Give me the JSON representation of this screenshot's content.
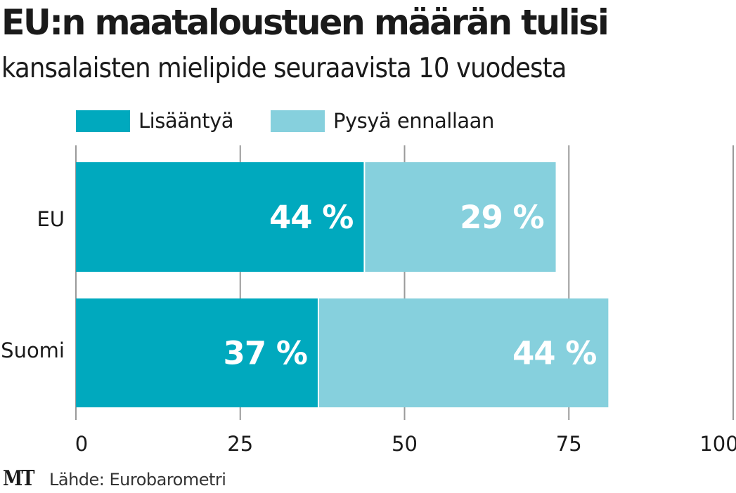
{
  "chart_data": {
    "type": "bar",
    "orientation": "horizontal",
    "stacked": true,
    "title": "EU:n maataloustuen määrän tulisi",
    "subtitle": "kansalaisten mielipide seuraavista 10 vuodesta",
    "categories": [
      "EU",
      "Suomi"
    ],
    "series": [
      {
        "name": "Lisääntyä",
        "color": "#00a9be",
        "values": [
          44,
          37
        ],
        "labels": [
          "44 %",
          "37 %"
        ]
      },
      {
        "name": "Pysyä ennallaan",
        "color": "#86d0dd",
        "values": [
          29,
          44
        ],
        "labels": [
          "29 %",
          "44 %"
        ]
      }
    ],
    "xlim": [
      0,
      100
    ],
    "xticks": [
      0,
      25,
      50,
      75,
      100
    ],
    "xtick_labels": [
      "0",
      "25",
      "50",
      "75",
      "100"
    ],
    "grid": true,
    "legend_position": "top-left",
    "xlabel": "",
    "ylabel": ""
  },
  "footer": {
    "logo": "MT",
    "source": "Lähde: Eurobarometri"
  }
}
